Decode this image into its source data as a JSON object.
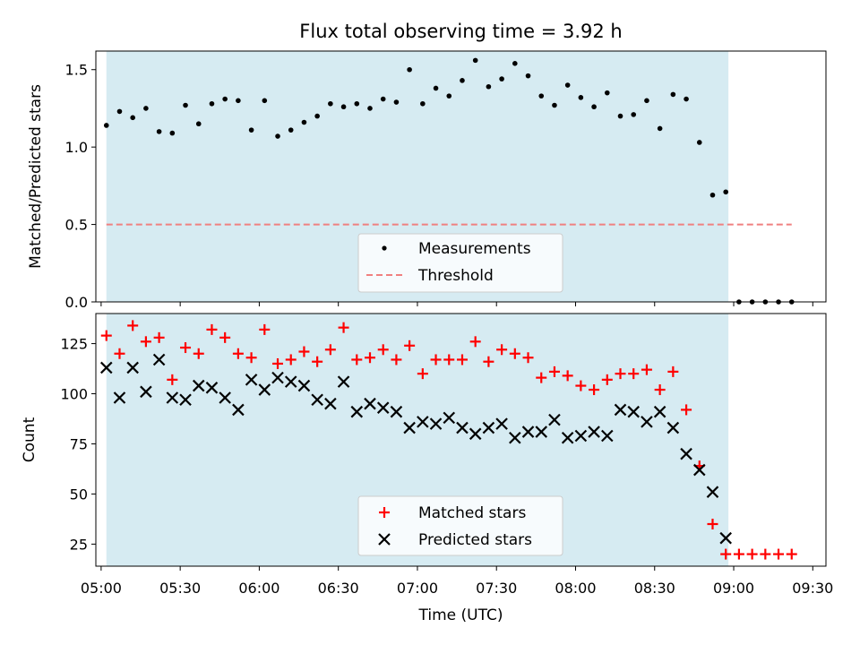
{
  "chart_data": [
    {
      "type": "scatter",
      "title": "Flux total observing time = 3.92 h",
      "xlabel": "",
      "ylabel": "Matched/Predicted stars",
      "xlim": [
        "04:58",
        "09:35"
      ],
      "ylim": [
        0,
        1.62
      ],
      "yticks": [
        0.0,
        0.5,
        1.0,
        1.5
      ],
      "ytick_labels": [
        "0.0",
        "0.5",
        "1.0",
        "1.5"
      ],
      "shaded_span": [
        "05:02",
        "08:58"
      ],
      "threshold": {
        "name": "Threshold",
        "y": 0.5,
        "x": [
          "05:02",
          "09:22"
        ],
        "color": "#f08080"
      },
      "legend": {
        "position": "bottom-center",
        "entries": [
          "Measurements",
          "Threshold"
        ]
      },
      "series": [
        {
          "name": "Measurements",
          "color": "#000000",
          "x": [
            "05:02",
            "05:07",
            "05:12",
            "05:17",
            "05:22",
            "05:27",
            "05:32",
            "05:37",
            "05:42",
            "05:47",
            "05:52",
            "05:57",
            "06:02",
            "06:07",
            "06:12",
            "06:17",
            "06:22",
            "06:27",
            "06:32",
            "06:37",
            "06:42",
            "06:47",
            "06:52",
            "06:57",
            "07:02",
            "07:07",
            "07:12",
            "07:17",
            "07:22",
            "07:27",
            "07:32",
            "07:37",
            "07:42",
            "07:47",
            "07:52",
            "07:57",
            "08:02",
            "08:07",
            "08:12",
            "08:17",
            "08:22",
            "08:27",
            "08:32",
            "08:37",
            "08:42",
            "08:47",
            "08:52",
            "08:57",
            "09:02",
            "09:07",
            "09:12",
            "09:17",
            "09:22"
          ],
          "y": [
            1.14,
            1.23,
            1.19,
            1.25,
            1.1,
            1.09,
            1.27,
            1.15,
            1.28,
            1.31,
            1.3,
            1.11,
            1.3,
            1.07,
            1.11,
            1.16,
            1.2,
            1.28,
            1.26,
            1.28,
            1.25,
            1.31,
            1.29,
            1.5,
            1.28,
            1.38,
            1.33,
            1.43,
            1.56,
            1.39,
            1.44,
            1.54,
            1.46,
            1.33,
            1.27,
            1.4,
            1.32,
            1.26,
            1.35,
            1.2,
            1.21,
            1.3,
            1.12,
            1.34,
            1.31,
            1.03,
            0.69,
            0.71,
            0.0,
            0.0,
            0.0,
            0.0,
            0.0
          ]
        }
      ]
    },
    {
      "type": "scatter",
      "title": "",
      "xlabel": "Time (UTC)",
      "ylabel": "Count",
      "xlim": [
        "04:58",
        "09:35"
      ],
      "ylim": [
        14,
        140
      ],
      "yticks": [
        25,
        50,
        75,
        100,
        125
      ],
      "ytick_labels": [
        "25",
        "50",
        "75",
        "100",
        "125"
      ],
      "xticks": [
        "05:00",
        "05:30",
        "06:00",
        "06:30",
        "07:00",
        "07:30",
        "08:00",
        "08:30",
        "09:00",
        "09:30"
      ],
      "shaded_span": [
        "05:02",
        "08:58"
      ],
      "legend": {
        "position": "bottom-center",
        "entries": [
          "Matched stars",
          "Predicted stars"
        ]
      },
      "series": [
        {
          "name": "Matched stars",
          "color": "#ff0000",
          "marker": "+",
          "x": [
            "05:02",
            "05:07",
            "05:12",
            "05:17",
            "05:22",
            "05:27",
            "05:32",
            "05:37",
            "05:42",
            "05:47",
            "05:52",
            "05:57",
            "06:02",
            "06:07",
            "06:12",
            "06:17",
            "06:22",
            "06:27",
            "06:32",
            "06:37",
            "06:42",
            "06:47",
            "06:52",
            "06:57",
            "07:02",
            "07:07",
            "07:12",
            "07:17",
            "07:22",
            "07:27",
            "07:32",
            "07:37",
            "07:42",
            "07:47",
            "07:52",
            "07:57",
            "08:02",
            "08:07",
            "08:12",
            "08:17",
            "08:22",
            "08:27",
            "08:32",
            "08:37",
            "08:42",
            "08:47",
            "08:52",
            "08:57",
            "09:02",
            "09:07",
            "09:12",
            "09:17",
            "09:22"
          ],
          "y": [
            129,
            120,
            134,
            126,
            128,
            107,
            123,
            120,
            132,
            128,
            120,
            118,
            132,
            115,
            117,
            121,
            116,
            122,
            133,
            117,
            118,
            122,
            117,
            124,
            110,
            117,
            117,
            117,
            126,
            116,
            122,
            120,
            118,
            108,
            111,
            109,
            104,
            102,
            107,
            110,
            110,
            112,
            102,
            111,
            92,
            64,
            35,
            20,
            20,
            20,
            20,
            20,
            20
          ]
        },
        {
          "name": "Predicted stars",
          "color": "#000000",
          "marker": "x",
          "x": [
            "05:02",
            "05:07",
            "05:12",
            "05:17",
            "05:22",
            "05:27",
            "05:32",
            "05:37",
            "05:42",
            "05:47",
            "05:52",
            "05:57",
            "06:02",
            "06:07",
            "06:12",
            "06:17",
            "06:22",
            "06:27",
            "06:32",
            "06:37",
            "06:42",
            "06:47",
            "06:52",
            "06:57",
            "07:02",
            "07:07",
            "07:12",
            "07:17",
            "07:22",
            "07:27",
            "07:32",
            "07:37",
            "07:42",
            "07:47",
            "07:52",
            "07:57",
            "08:02",
            "08:07",
            "08:12",
            "08:17",
            "08:22",
            "08:27",
            "08:32",
            "08:37",
            "08:42",
            "08:47",
            "08:52",
            "08:57"
          ],
          "y": [
            113,
            98,
            113,
            101,
            117,
            98,
            97,
            104,
            103,
            98,
            92,
            107,
            102,
            108,
            106,
            104,
            97,
            95,
            106,
            91,
            95,
            93,
            91,
            83,
            86,
            85,
            88,
            83,
            80,
            83,
            85,
            78,
            81,
            81,
            87,
            78,
            79,
            81,
            79,
            92,
            91,
            86,
            91,
            83,
            70,
            62,
            51,
            28
          ]
        }
      ]
    }
  ]
}
